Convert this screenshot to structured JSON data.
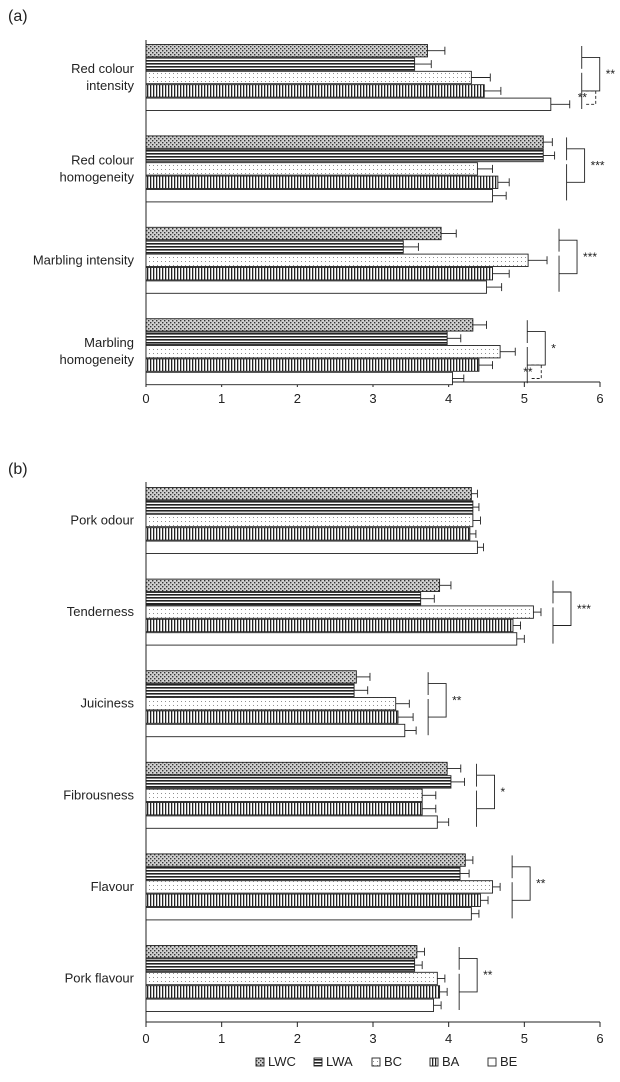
{
  "legend": [
    {
      "name": "LWC",
      "pattern": "pLWC"
    },
    {
      "name": "LWA",
      "pattern": "pLWA"
    },
    {
      "name": "BC",
      "pattern": "pBC"
    },
    {
      "name": "BA",
      "pattern": "pBA"
    },
    {
      "name": "BE",
      "pattern": "pBE"
    }
  ],
  "chart_data": [
    {
      "type": "bar",
      "panel": "(a)",
      "orientation": "horizontal",
      "xlim": [
        0,
        6
      ],
      "xticks": [
        0,
        1,
        2,
        3,
        4,
        5,
        6
      ],
      "series_names": [
        "LWC",
        "LWA",
        "BC",
        "BA",
        "BE"
      ],
      "categories": [
        {
          "label": [
            "Red colour",
            "intensity"
          ],
          "values": [
            3.72,
            3.55,
            4.3,
            4.47,
            5.35
          ],
          "errors": [
            0.23,
            0.22,
            0.25,
            0.22,
            0.25
          ],
          "sig": [
            {
              "label": "**",
              "style": "solid"
            },
            {
              "label": "**",
              "style": "dashed"
            }
          ]
        },
        {
          "label": [
            "Red colour",
            "homogeneity"
          ],
          "values": [
            5.25,
            5.25,
            4.38,
            4.65,
            4.58
          ],
          "errors": [
            0.12,
            0.15,
            0.2,
            0.15,
            0.18
          ],
          "sig": [
            {
              "label": "***",
              "style": "solid"
            }
          ]
        },
        {
          "label": [
            "Marbling intensity"
          ],
          "values": [
            3.9,
            3.4,
            5.05,
            4.58,
            4.5
          ],
          "errors": [
            0.2,
            0.2,
            0.25,
            0.22,
            0.2
          ],
          "sig": [
            {
              "label": "***",
              "style": "solid"
            }
          ]
        },
        {
          "label": [
            "Marbling",
            "homogeneity"
          ],
          "values": [
            4.32,
            3.98,
            4.68,
            4.4,
            4.05
          ],
          "errors": [
            0.18,
            0.18,
            0.2,
            0.18,
            0.15
          ],
          "sig": [
            {
              "label": "*",
              "style": "solid"
            },
            {
              "label": "**",
              "style": "dashed"
            }
          ]
        }
      ]
    },
    {
      "type": "bar",
      "panel": "(b)",
      "orientation": "horizontal",
      "xlim": [
        0,
        6
      ],
      "xticks": [
        0,
        1,
        2,
        3,
        4,
        5,
        6
      ],
      "series_names": [
        "LWC",
        "LWA",
        "BC",
        "BA",
        "BE"
      ],
      "categories": [
        {
          "label": [
            "Pork odour"
          ],
          "values": [
            4.3,
            4.32,
            4.32,
            4.28,
            4.38
          ],
          "errors": [
            0.08,
            0.08,
            0.1,
            0.08,
            0.08
          ],
          "sig": []
        },
        {
          "label": [
            "Tenderness"
          ],
          "values": [
            3.88,
            3.63,
            5.12,
            4.85,
            4.9
          ],
          "errors": [
            0.15,
            0.18,
            0.1,
            0.1,
            0.1
          ],
          "sig": [
            {
              "label": "***",
              "style": "solid"
            }
          ]
        },
        {
          "label": [
            "Juiciness"
          ],
          "values": [
            2.78,
            2.75,
            3.3,
            3.33,
            3.42
          ],
          "errors": [
            0.18,
            0.18,
            0.18,
            0.2,
            0.15
          ],
          "sig": [
            {
              "label": "**",
              "style": "solid"
            }
          ]
        },
        {
          "label": [
            "Fibrousness"
          ],
          "values": [
            3.98,
            4.03,
            3.65,
            3.65,
            3.85
          ],
          "errors": [
            0.18,
            0.18,
            0.18,
            0.18,
            0.15
          ],
          "sig": [
            {
              "label": "*",
              "style": "solid"
            }
          ]
        },
        {
          "label": [
            "Flavour"
          ],
          "values": [
            4.22,
            4.15,
            4.58,
            4.42,
            4.3
          ],
          "errors": [
            0.1,
            0.12,
            0.1,
            0.1,
            0.1
          ],
          "sig": [
            {
              "label": "**",
              "style": "solid"
            }
          ]
        },
        {
          "label": [
            "Pork flavour"
          ],
          "values": [
            3.58,
            3.55,
            3.85,
            3.88,
            3.8
          ],
          "errors": [
            0.1,
            0.1,
            0.1,
            0.1,
            0.1
          ],
          "sig": [
            {
              "label": "**",
              "style": "solid"
            }
          ]
        }
      ]
    }
  ]
}
